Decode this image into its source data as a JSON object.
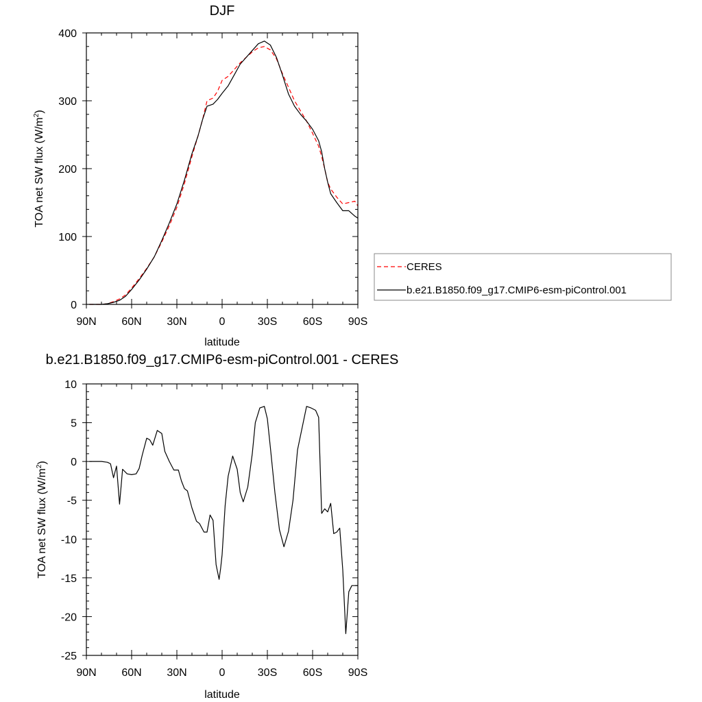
{
  "chart_data": [
    {
      "type": "line",
      "title": "DJF",
      "xlabel": "latitude",
      "ylabel": "TOA net SW flux (W/m",
      "ylabel_sup": "2",
      "ylabel_close": ")",
      "xlim": [
        -90,
        90
      ],
      "ylim": [
        0,
        400
      ],
      "x_ticks": [
        {
          "v": -90,
          "label": "90N"
        },
        {
          "v": -60,
          "label": "60N"
        },
        {
          "v": -30,
          "label": "30N"
        },
        {
          "v": 0,
          "label": "0"
        },
        {
          "v": 30,
          "label": "30S"
        },
        {
          "v": 60,
          "label": "60S"
        },
        {
          "v": 90,
          "label": "90S"
        }
      ],
      "y_ticks": [
        {
          "v": 0,
          "label": "0"
        },
        {
          "v": 100,
          "label": "100"
        },
        {
          "v": 200,
          "label": "200"
        },
        {
          "v": 300,
          "label": "300"
        },
        {
          "v": 400,
          "label": "400"
        }
      ],
      "legend": [
        "CERES",
        "b.e21.B1850.f09_g17.CMIP6-esm-piControl.001"
      ],
      "series": [
        {
          "name": "CERES",
          "color": "#ff0000",
          "dash": true,
          "x": [
            -88,
            -80,
            -76,
            -72,
            -68,
            -64,
            -60,
            -55,
            -50,
            -45,
            -40,
            -35,
            -30,
            -25,
            -20,
            -16,
            -13,
            -10,
            -6,
            -3,
            0,
            4,
            8,
            12,
            16,
            20,
            24,
            28,
            32,
            36,
            40,
            44,
            48,
            52,
            56,
            60,
            64,
            66,
            68,
            70,
            72,
            76,
            80,
            84,
            88,
            90
          ],
          "values": [
            0,
            0,
            1,
            4,
            8,
            14,
            24,
            38,
            53,
            70,
            92,
            116,
            143,
            178,
            218,
            248,
            272,
            300,
            304,
            314,
            330,
            336,
            346,
            356,
            364,
            372,
            378,
            380,
            375,
            362,
            340,
            320,
            300,
            285,
            270,
            252,
            233,
            218,
            200,
            180,
            170,
            158,
            148,
            150,
            152,
            145
          ]
        },
        {
          "name": "b.e21.B1850.f09_g17.CMIP6-esm-piControl.001",
          "color": "#000000",
          "dash": false,
          "x": [
            -88,
            -80,
            -76,
            -72,
            -68,
            -64,
            -60,
            -55,
            -50,
            -45,
            -40,
            -35,
            -30,
            -25,
            -20,
            -16,
            -13,
            -10,
            -6,
            -3,
            0,
            4,
            8,
            12,
            16,
            20,
            24,
            28,
            32,
            36,
            40,
            44,
            48,
            52,
            56,
            60,
            64,
            66,
            68,
            70,
            72,
            76,
            80,
            84,
            88,
            90
          ],
          "values": [
            0,
            0,
            1,
            3,
            6,
            12,
            22,
            36,
            52,
            70,
            94,
            120,
            148,
            183,
            222,
            248,
            272,
            292,
            295,
            302,
            311,
            322,
            338,
            354,
            364,
            374,
            384,
            388,
            382,
            364,
            338,
            310,
            292,
            280,
            270,
            258,
            241,
            225,
            200,
            180,
            163,
            150,
            138,
            138,
            130,
            127
          ]
        }
      ]
    },
    {
      "type": "line",
      "title": "b.e21.B1850.f09_g17.CMIP6-esm-piControl.001 - CERES",
      "xlabel": "latitude",
      "ylabel": "TOA net SW flux (W/m",
      "ylabel_sup": "2",
      "ylabel_close": ")",
      "xlim": [
        -90,
        90
      ],
      "ylim": [
        -25,
        10
      ],
      "x_ticks": [
        {
          "v": -90,
          "label": "90N"
        },
        {
          "v": -60,
          "label": "60N"
        },
        {
          "v": -30,
          "label": "30N"
        },
        {
          "v": 0,
          "label": "0"
        },
        {
          "v": 30,
          "label": "30S"
        },
        {
          "v": 60,
          "label": "60S"
        },
        {
          "v": 90,
          "label": "90S"
        }
      ],
      "y_ticks": [
        {
          "v": 10,
          "label": "10"
        },
        {
          "v": 5,
          "label": "5"
        },
        {
          "v": 0,
          "label": "0"
        },
        {
          "v": -5,
          "label": "-5"
        },
        {
          "v": -10,
          "label": "-10"
        },
        {
          "v": -15,
          "label": "-15"
        },
        {
          "v": -20,
          "label": "-20"
        },
        {
          "v": -25,
          "label": "-25"
        }
      ],
      "series": [
        {
          "name": "b.e21.B1850.f09_g17.CMIP6-esm-piControl.001 - CERES",
          "color": "#000000",
          "dash": false,
          "x": [
            -88,
            -80,
            -76,
            -74,
            -72,
            -70,
            -68,
            -66,
            -63,
            -60,
            -57,
            -55,
            -53,
            -50,
            -48,
            -46,
            -43,
            -40,
            -38,
            -35,
            -32,
            -29,
            -27,
            -25,
            -23,
            -20,
            -17,
            -15,
            -12,
            -10,
            -8,
            -6,
            -4,
            -2,
            -1,
            0,
            2,
            4,
            7,
            10,
            12,
            14,
            17,
            20,
            22,
            25,
            28,
            30,
            32,
            35,
            38,
            41,
            44,
            47,
            50,
            53,
            56,
            59,
            62,
            64,
            66,
            68,
            70,
            72,
            74,
            76,
            78,
            80,
            82,
            84,
            86,
            88,
            90
          ],
          "values": [
            0,
            0,
            -0.1,
            -0.3,
            -2.1,
            -0.6,
            -5.5,
            -1,
            -1.6,
            -1.7,
            -1.6,
            -0.9,
            0.8,
            3,
            2.8,
            2.1,
            4,
            3.6,
            1.3,
            0,
            -1.1,
            -1.1,
            -2.5,
            -3.5,
            -3.8,
            -6,
            -7.7,
            -8,
            -9.1,
            -9.1,
            -6.9,
            -7.6,
            -13.3,
            -15.2,
            -13.8,
            -12,
            -5.7,
            -1.9,
            0.7,
            -1,
            -4,
            -5.2,
            -3.3,
            1,
            5,
            6.9,
            7.1,
            5.5,
            1.8,
            -4,
            -8.8,
            -11,
            -9,
            -5,
            1.5,
            4.3,
            7.1,
            6.9,
            6.6,
            5.7,
            -6.7,
            -6.1,
            -6.5,
            -5.4,
            -9.3,
            -9.1,
            -8.6,
            -14,
            -22.2,
            -16.8,
            -16,
            -16,
            -16
          ]
        }
      ]
    }
  ]
}
